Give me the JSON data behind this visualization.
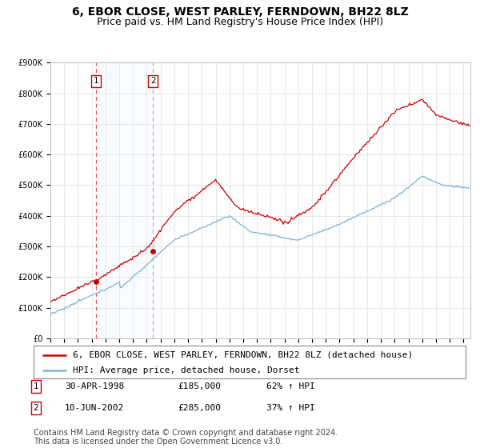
{
  "title": "6, EBOR CLOSE, WEST PARLEY, FERNDOWN, BH22 8LZ",
  "subtitle": "Price paid vs. HM Land Registry's House Price Index (HPI)",
  "ylim": [
    0,
    900000
  ],
  "yticks": [
    0,
    100000,
    200000,
    300000,
    400000,
    500000,
    600000,
    700000,
    800000,
    900000
  ],
  "ytick_labels": [
    "£0",
    "£100K",
    "£200K",
    "£300K",
    "£400K",
    "£500K",
    "£600K",
    "£700K",
    "£800K",
    "£900K"
  ],
  "sale1_date": 1998.33,
  "sale1_price": 185000,
  "sale2_date": 2002.44,
  "sale2_price": 285000,
  "legend_line1": "6, EBOR CLOSE, WEST PARLEY, FERNDOWN, BH22 8LZ (detached house)",
  "legend_line2": "HPI: Average price, detached house, Dorset",
  "table_row1": [
    "1",
    "30-APR-1998",
    "£185,000",
    "62% ↑ HPI"
  ],
  "table_row2": [
    "2",
    "10-JUN-2002",
    "£285,000",
    "37% ↑ HPI"
  ],
  "footer": "Contains HM Land Registry data © Crown copyright and database right 2024.\nThis data is licensed under the Open Government Licence v3.0.",
  "hpi_color": "#7ab4d8",
  "price_color": "#cc0000",
  "vline1_color": "#ee4444",
  "vline2_color": "#cc99cc",
  "span_color": "#ddeeff",
  "grid_color": "#dddddd",
  "background_color": "#ffffff",
  "title_fontsize": 10,
  "subtitle_fontsize": 9,
  "tick_fontsize": 7,
  "legend_fontsize": 8,
  "table_fontsize": 8,
  "footer_fontsize": 7
}
